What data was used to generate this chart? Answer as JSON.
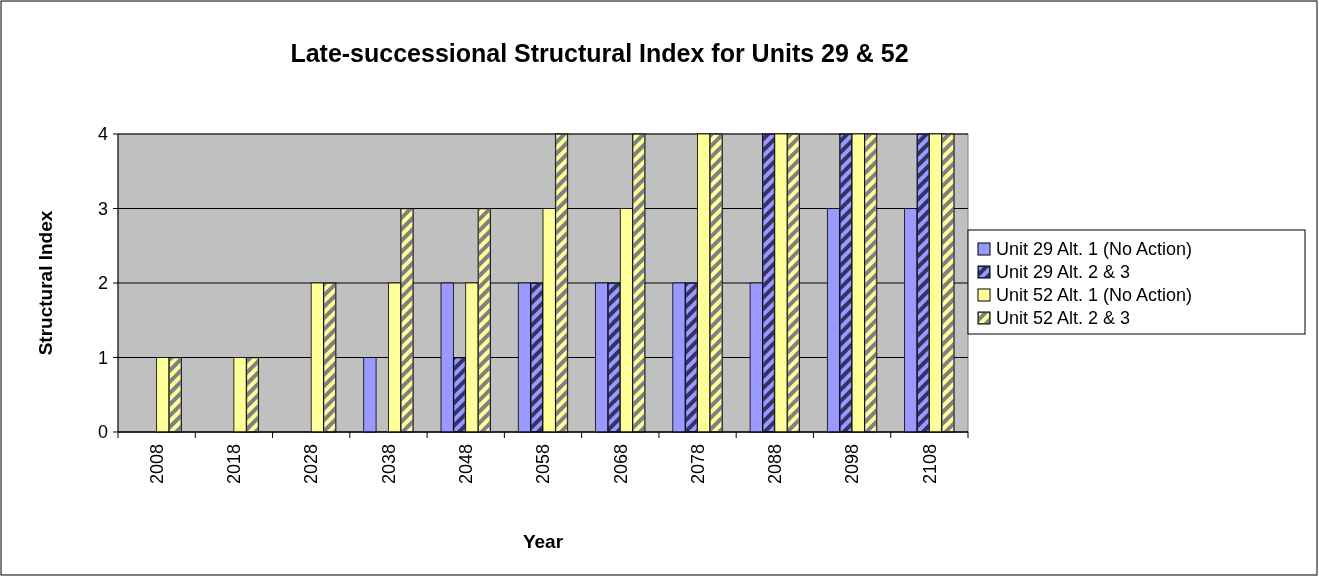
{
  "chart_data": {
    "type": "bar",
    "title": "Late-successional Structural Index for Units 29 & 52",
    "xlabel": "Year",
    "ylabel": "Structural Index",
    "categories": [
      "2008",
      "2018",
      "2028",
      "2038",
      "2048",
      "2058",
      "2068",
      "2078",
      "2088",
      "2098",
      "2108"
    ],
    "series": [
      {
        "name": "Unit 29 Alt. 1 (No Action)",
        "color": "#9999ff",
        "values": [
          0,
          0,
          0,
          1,
          2,
          2,
          2,
          2,
          2,
          3,
          3
        ]
      },
      {
        "name": "Unit 29 Alt. 2 & 3",
        "color": "#333366",
        "values": [
          0,
          0,
          0,
          0,
          1,
          2,
          2,
          2,
          4,
          4,
          4
        ]
      },
      {
        "name": "Unit 52 Alt. 1 (No Action)",
        "color": "#ffff99",
        "values": [
          1,
          1,
          2,
          2,
          2,
          3,
          3,
          4,
          4,
          4,
          4
        ]
      },
      {
        "name": "Unit 52 Alt. 2 & 3",
        "color": "#808080",
        "values": [
          1,
          1,
          2,
          3,
          3,
          4,
          4,
          4,
          4,
          4,
          4
        ]
      }
    ],
    "ylim": [
      0,
      4
    ],
    "yticks": [
      0,
      1,
      2,
      3,
      4
    ],
    "grid": "y",
    "legend": "right"
  }
}
